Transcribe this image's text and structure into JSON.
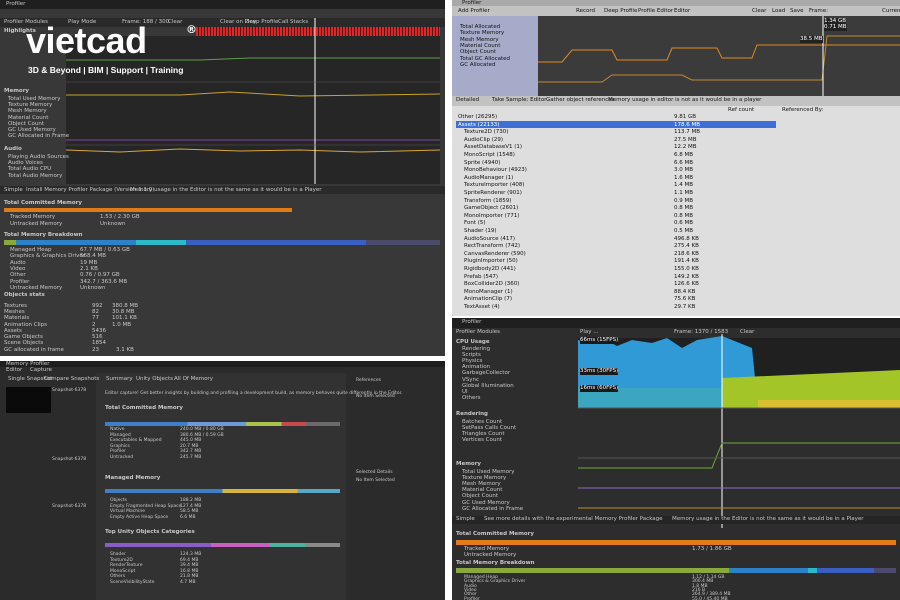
{
  "logo": {
    "name": "vietcad",
    "mark": "®",
    "tagline": "3D & Beyond | BIM | Support | Training"
  },
  "top_left": {
    "tab": "Profiler",
    "toolbar": [
      "Profiler Modules",
      "Play Mode",
      "Frame: 188 / 300",
      "Clear",
      "Clear on Play",
      "Deep Profile",
      "Call Stacks"
    ],
    "highlights": "Highlights",
    "memory_title": "Memory",
    "memory_items": [
      "Total Used Memory",
      "Texture Memory",
      "Mesh Memory",
      "Material Count",
      "Object Count",
      "GC Used Memory",
      "GC Allocated in Frame"
    ],
    "audio_title": "Audio",
    "audio_items": [
      "Playing Audio Sources",
      "Audio Voices",
      "Total Audio CPU",
      "Total Audio Memory"
    ],
    "bottom_toolbar": [
      "Simple",
      "Install Memory Profiler Package (Version 1.1.0)",
      "Memory usage in the Editor is not the same as it would be in a Player"
    ],
    "committed_title": "Total Committed Memory",
    "committed_rows": [
      [
        "Tracked Memory",
        "1.53 / 2.30 GB"
      ],
      [
        "Untracked Memory",
        "Unknown"
      ]
    ],
    "breakdown_title": "Total Memory Breakdown",
    "breakdown_rows": [
      [
        "Managed Heap",
        "67.7 MB / 0.63 GB"
      ],
      [
        "Graphics & Graphics Driver",
        "568.4 MB"
      ],
      [
        "Audio",
        "19 MB"
      ],
      [
        "Video",
        "2.1 KB"
      ],
      [
        "Other",
        "0.76 / 0.97 GB"
      ],
      [
        "Profiler",
        "342.7 / 363.6 MB"
      ],
      [
        "Untracked Memory",
        "Unknown"
      ]
    ],
    "objects_title": "Objects stats",
    "objects_rows": [
      [
        "Textures",
        "992",
        "380.8 MB"
      ],
      [
        "Meshes",
        "82",
        "30.8 MB"
      ],
      [
        "Materials",
        "77",
        "101.1 KB"
      ],
      [
        "Animation Clips",
        "2",
        "1.0 MB"
      ],
      [
        "Assets",
        "5436",
        ""
      ],
      [
        "Game Objects",
        "516",
        ""
      ],
      [
        "Scene Objects",
        "1854",
        ""
      ]
    ],
    "gc_row": [
      "GC allocated in frame",
      "23",
      "3.1 KB"
    ]
  },
  "top_right": {
    "tab": "Profiler",
    "toolbar": [
      "Add Profiler",
      "Record",
      "Deep Profile",
      "Profile Editor",
      "Editor",
      "Clear",
      "Load",
      "Save",
      "Frame:",
      "Current"
    ],
    "legend": [
      "Total Allocated",
      "Texture Memory",
      "Mesh Memory",
      "Material Count",
      "Object Count",
      "Total GC Allocated",
      "GC Allocated"
    ],
    "graph_labels": [
      "1.34 GB",
      "0.71 MB",
      "38.5 MB"
    ],
    "tabs": [
      "Detailed",
      "Take Sample: Editor",
      "Gather object references",
      "Memory usage in editor is not as it would be in a player"
    ],
    "columns": [
      "Ref count",
      "Referenced By:"
    ],
    "tree": [
      [
        "Other (26295)",
        "9.81 GB"
      ],
      [
        "Assets (22133)",
        "178.6 MB"
      ],
      [
        "Texture2D (730)",
        "113.7 MB"
      ],
      [
        "AudioClip (29)",
        "27.5 MB"
      ],
      [
        "AssetDatabaseV1 (1)",
        "12.2 MB"
      ],
      [
        "MonoScript (1548)",
        "6.8 MB"
      ],
      [
        "Sprite (4940)",
        "6.6 MB"
      ],
      [
        "MonoBehaviour (4923)",
        "3.0 MB"
      ],
      [
        "AudioManager (1)",
        "1.6 MB"
      ],
      [
        "TextureImporter (408)",
        "1.4 MB"
      ],
      [
        "SpriteRenderer (901)",
        "1.1 MB"
      ],
      [
        "Transform (1859)",
        "0.9 MB"
      ],
      [
        "GameObject (2601)",
        "0.8 MB"
      ],
      [
        "MonoImporter (771)",
        "0.8 MB"
      ],
      [
        "Font (5)",
        "0.6 MB"
      ],
      [
        "Shader (19)",
        "0.5 MB"
      ],
      [
        "AudioSource (417)",
        "496.8 KB"
      ],
      [
        "RectTransform (742)",
        "275.4 KB"
      ],
      [
        "CanvasRenderer (590)",
        "218.6 KB"
      ],
      [
        "PluginImporter (50)",
        "191.4 KB"
      ],
      [
        "Rigidbody2D (441)",
        "155.0 KB"
      ],
      [
        "Prefab (547)",
        "149.2 KB"
      ],
      [
        "BoxCollider2D (360)",
        "126.6 KB"
      ],
      [
        "MonoManager (1)",
        "88.4 KB"
      ],
      [
        "AnimationClip (7)",
        "75.6 KB"
      ],
      [
        "TextAsset (4)",
        "29.7 KB"
      ]
    ]
  },
  "bottom_left": {
    "tab": "Memory Profiler",
    "toolbar": [
      "Editor",
      "Capture"
    ],
    "mode_tabs": [
      "Single Snapshot",
      "Compare Snapshots"
    ],
    "view_tabs": [
      "Summary",
      "Unity Objects",
      "All Of Memory"
    ],
    "notice": "Editor capture! Get better insights by building and profiling a development build, as memory behaves quite differently in the Editor.",
    "sections": [
      "Total Committed Memory",
      "Managed Memory",
      "Top Unity Objects Categories"
    ],
    "committed_rows": [
      [
        "Native",
        "240.0 MB / 0.80 GB"
      ],
      [
        "Managed",
        "380.6 MB / 0.59 GB"
      ],
      [
        "Executables & Mapped",
        "445.0 MB"
      ],
      [
        "Graphics",
        "20.7 MB"
      ],
      [
        "Profiler",
        "342.7 MB"
      ],
      [
        "Untracked",
        "245.7 MB"
      ]
    ],
    "managed_rows": [
      [
        "Objects",
        "188.2 MB"
      ],
      [
        "Empty Fragmented Heap Space",
        "127.4 MB"
      ],
      [
        "Virtual Machine",
        "58.5 MB"
      ],
      [
        "Empty Active Heap Space",
        "6.6 MB"
      ]
    ],
    "category_rows": [
      [
        "Shader",
        "124.3 MB"
      ],
      [
        "Texture2D",
        "69.4 MB"
      ],
      [
        "RenderTexture",
        "39.4 MB"
      ],
      [
        "MonoScript",
        "16.8 MB"
      ],
      [
        "Others",
        "21.8 MB"
      ],
      [
        "SceneVisibilityState",
        "4.7 MB"
      ]
    ],
    "snapshots": [
      "Snapshot-6378",
      "Snapshot-6378",
      "Snapshot-6378"
    ],
    "side": [
      "References",
      "Selected Details",
      "No Item Selected",
      "No Item Selected"
    ]
  },
  "bottom_right": {
    "tab": "Profiler",
    "toolbar": [
      "Profiler Modules",
      "Play ...",
      "Frame: 1370 / 1583",
      "Clear"
    ],
    "cpu_title": "CPU Usage",
    "cpu_items": [
      "Rendering",
      "Scripts",
      "Physics",
      "Animation",
      "GarbageCollector",
      "VSync",
      "Global Illumination",
      "UI",
      "Others"
    ],
    "fps_labels": [
      "66ms (15FPS)",
      "33ms (30FPS)",
      "16ms (60FPS)"
    ],
    "rendering_title": "Rendering",
    "rendering_items": [
      "Batches Count",
      "SetPass Calls Count",
      "Triangles Count",
      "Vertices Count"
    ],
    "memory_title": "Memory",
    "memory_items": [
      "Total Used Memory",
      "Texture Memory",
      "Mesh Memory",
      "Material Count",
      "Object Count",
      "GC Used Memory",
      "GC Allocated in Frame"
    ],
    "bottom_toolbar": [
      "Simple",
      "See more details with the experimental Memory Profiler Package",
      "Memory usage in the Editor is not the same as it would be in a Player"
    ],
    "committed_title": "Total Committed Memory",
    "committed_total": "1.73 / 1.86 GB",
    "committed_rows": [
      "Tracked Memory",
      "Untracked Memory"
    ],
    "breakdown_title": "Total Memory Breakdown",
    "breakdown_rows": [
      [
        "Managed Heap",
        "1.12 / 1.14 GB"
      ],
      [
        "Graphics & Graphics Driver",
        "300.4 MB"
      ],
      [
        "Audio",
        "1.8 MB"
      ],
      [
        "Video",
        "216 B"
      ],
      [
        "Other",
        "264.9 / 389.4 MB"
      ],
      [
        "Profiler",
        "55.0 / 45.40 MB"
      ]
    ]
  }
}
